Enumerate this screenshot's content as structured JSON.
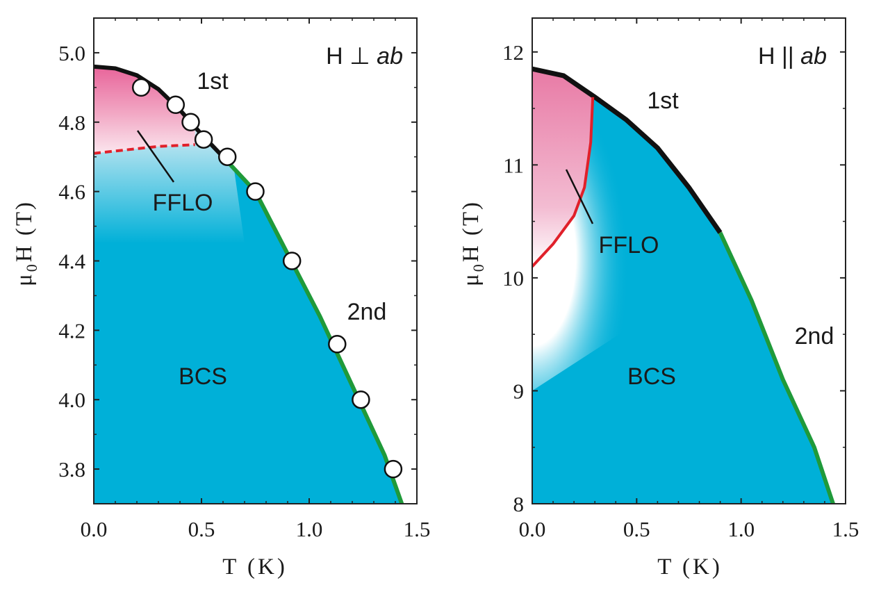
{
  "chart_data": [
    {
      "type": "line",
      "panel": "left",
      "title": "H ⊥ ab",
      "title_plain": "H ⊥ ",
      "title_italic": "ab",
      "xlabel": "T (K)",
      "ylabel": "μ0H (T)",
      "ylabel_main": "μ",
      "ylabel_sub": "0",
      "ylabel_rest": "H (T)",
      "xlim": [
        0,
        1.5
      ],
      "ylim": [
        3.7,
        5.1
      ],
      "xticks": [
        0.0,
        0.5,
        1.0,
        1.5
      ],
      "xtick_labels": [
        "0.0",
        "0.5",
        "1.0",
        "1.5"
      ],
      "yticks": [
        3.8,
        4.0,
        4.2,
        4.4,
        4.6,
        4.8,
        5.0
      ],
      "ytick_labels": [
        "3.8",
        "4.0",
        "4.2",
        "4.4",
        "4.6",
        "4.8",
        "5.0"
      ],
      "annotations": [
        "1st",
        "2nd",
        "FFLO",
        "BCS"
      ],
      "series": [
        {
          "name": "1st-order boundary",
          "color": "#111111",
          "x": [
            0.0,
            0.1,
            0.2,
            0.3,
            0.4,
            0.5,
            0.6
          ],
          "y": [
            4.96,
            4.955,
            4.935,
            4.895,
            4.835,
            4.765,
            4.7
          ]
        },
        {
          "name": "2nd-order boundary",
          "color": "#1f9a3a",
          "x": [
            0.6,
            0.75,
            0.9,
            1.05,
            1.2,
            1.35,
            1.43
          ],
          "y": [
            4.7,
            4.6,
            4.42,
            4.24,
            4.04,
            3.84,
            3.7
          ]
        },
        {
          "name": "FFLO boundary",
          "color": "#e0202a",
          "style": "dashed",
          "x": [
            0.0,
            0.15,
            0.3,
            0.47
          ],
          "y": [
            4.71,
            4.72,
            4.73,
            4.735
          ]
        },
        {
          "name": "data points",
          "type": "scatter",
          "x": [
            0.22,
            0.38,
            0.45,
            0.51,
            0.62,
            0.75,
            0.92,
            1.13,
            1.24,
            1.39
          ],
          "y": [
            4.9,
            4.85,
            4.8,
            4.75,
            4.7,
            4.6,
            4.4,
            4.16,
            4.0,
            3.8
          ]
        }
      ]
    },
    {
      "type": "line",
      "panel": "right",
      "title": "H || ab",
      "title_plain": "H || ",
      "title_italic": "ab",
      "xlabel": "T (K)",
      "ylabel": "μ0H (T)",
      "ylabel_main": "μ",
      "ylabel_sub": "0",
      "ylabel_rest": "H (T)",
      "xlim": [
        0,
        1.5
      ],
      "ylim": [
        8,
        12.3
      ],
      "xticks": [
        0.0,
        0.5,
        1.0,
        1.5
      ],
      "xtick_labels": [
        "0.0",
        "0.5",
        "1.0",
        "1.5"
      ],
      "yticks": [
        8,
        9,
        10,
        11,
        12
      ],
      "ytick_labels": [
        "8",
        "9",
        "10",
        "11",
        "12"
      ],
      "annotations": [
        "1st",
        "2nd",
        "FFLO",
        "BCS"
      ],
      "series": [
        {
          "name": "1st-order boundary",
          "color": "#111111",
          "x": [
            0.0,
            0.15,
            0.3,
            0.45,
            0.6,
            0.75,
            0.9
          ],
          "y": [
            11.85,
            11.79,
            11.6,
            11.4,
            11.15,
            10.8,
            10.4
          ]
        },
        {
          "name": "2nd-order boundary",
          "color": "#1f9a3a",
          "x": [
            0.9,
            1.05,
            1.2,
            1.35,
            1.44
          ],
          "y": [
            10.4,
            9.8,
            9.1,
            8.5,
            8.0
          ]
        },
        {
          "name": "FFLO boundary",
          "color": "#e0202a",
          "x": [
            0.0,
            0.1,
            0.2,
            0.25,
            0.28,
            0.29
          ],
          "y": [
            10.1,
            10.3,
            10.55,
            10.8,
            11.2,
            11.6
          ]
        }
      ]
    }
  ]
}
